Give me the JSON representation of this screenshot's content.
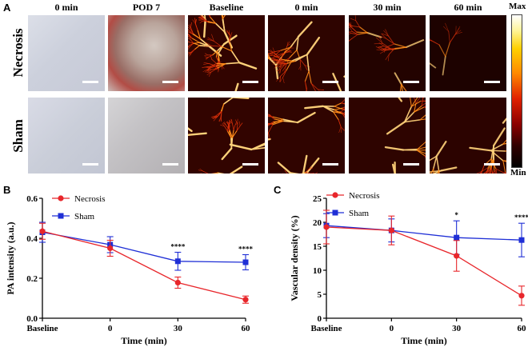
{
  "panels": {
    "a": "A",
    "b": "B",
    "c": "C"
  },
  "columns": [
    "0 min",
    "POD 7",
    "Baseline",
    "0 min",
    "30 min",
    "60 min"
  ],
  "rows": [
    "Necrosis",
    "Sham"
  ],
  "colorbar": {
    "max": "Max",
    "min": "Min"
  },
  "chart_data": [
    {
      "type": "line",
      "ylabel": "PA intensity (a.u.)",
      "xlabel": "Time (min)",
      "categories": [
        "Baseline",
        "0",
        "30",
        "60"
      ],
      "ylim": [
        0.0,
        0.6
      ],
      "yticks": [
        "0.0",
        "0.2",
        "0.4",
        "0.6"
      ],
      "series": [
        {
          "name": "Necrosis",
          "color": "#e8262b",
          "marker": "circle",
          "values": [
            0.435,
            0.35,
            0.178,
            0.093
          ],
          "errors": [
            0.04,
            0.04,
            0.028,
            0.018
          ]
        },
        {
          "name": "Sham",
          "color": "#1f2fd6",
          "marker": "square",
          "values": [
            0.43,
            0.368,
            0.285,
            0.28
          ],
          "errors": [
            0.05,
            0.04,
            0.045,
            0.038
          ]
        }
      ],
      "significance": [
        {
          "x": "30",
          "label": "****"
        },
        {
          "x": "60",
          "label": "****"
        }
      ],
      "legend": "top-left"
    },
    {
      "type": "line",
      "ylabel": "Vascular density (%)",
      "xlabel": "Time (min)",
      "categories": [
        "Baseline",
        "0",
        "30",
        "60"
      ],
      "ylim": [
        0,
        25
      ],
      "yticks": [
        "0",
        "5",
        "10",
        "15",
        "20",
        "25"
      ],
      "series": [
        {
          "name": "Necrosis",
          "color": "#e8262b",
          "marker": "circle",
          "values": [
            19.0,
            18.3,
            13.0,
            4.7
          ],
          "errors": [
            3.5,
            3.0,
            3.2,
            2.0
          ]
        },
        {
          "name": "Sham",
          "color": "#1f2fd6",
          "marker": "square",
          "values": [
            19.3,
            18.3,
            16.8,
            16.3
          ],
          "errors": [
            2.5,
            2.4,
            3.5,
            3.5
          ]
        }
      ],
      "significance": [
        {
          "x": "30",
          "label": "*"
        },
        {
          "x": "60",
          "label": "****"
        }
      ],
      "legend": "top-left"
    }
  ]
}
